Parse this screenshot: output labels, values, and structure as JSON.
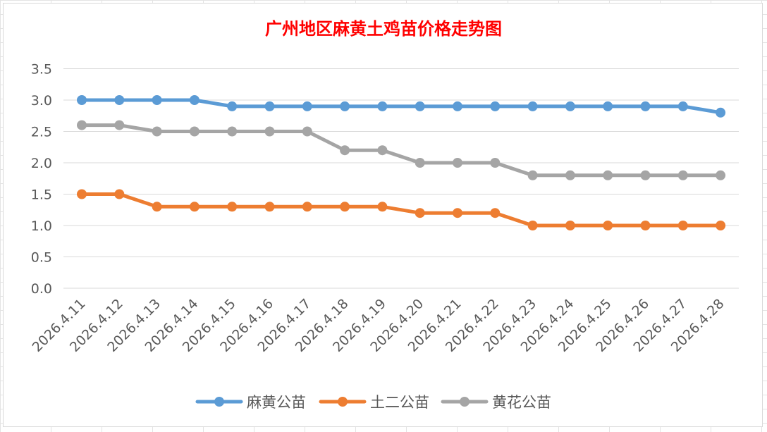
{
  "chart_data": {
    "type": "line",
    "title": "广州地区麻黄土鸡苗价格走势图",
    "xlabel": "",
    "ylabel": "",
    "ylim": [
      0,
      3.5
    ],
    "y_ticks": [
      "0.0",
      "0.5",
      "1.0",
      "1.5",
      "2.0",
      "2.5",
      "3.0",
      "3.5"
    ],
    "grid": true,
    "legend_position": "bottom",
    "categories": [
      "2026.4.11",
      "2026.4.12",
      "2026.4.13",
      "2026.4.14",
      "2026.4.15",
      "2026.4.16",
      "2026.4.17",
      "2026.4.18",
      "2026.4.19",
      "2026.4.20",
      "2026.4.21",
      "2026.4.22",
      "2026.4.23",
      "2026.4.24",
      "2026.4.25",
      "2026.4.26",
      "2026.4.27",
      "2026.4.28"
    ],
    "series": [
      {
        "name": "麻黄公苗",
        "color": "#5b9bd5",
        "values": [
          3.0,
          3.0,
          3.0,
          3.0,
          2.9,
          2.9,
          2.9,
          2.9,
          2.9,
          2.9,
          2.9,
          2.9,
          2.9,
          2.9,
          2.9,
          2.9,
          2.9,
          2.8
        ]
      },
      {
        "name": "土二公苗",
        "color": "#ed7d31",
        "values": [
          1.5,
          1.5,
          1.3,
          1.3,
          1.3,
          1.3,
          1.3,
          1.3,
          1.3,
          1.2,
          1.2,
          1.2,
          1.0,
          1.0,
          1.0,
          1.0,
          1.0,
          1.0
        ]
      },
      {
        "name": "黄花公苗",
        "color": "#a5a5a5",
        "values": [
          2.6,
          2.6,
          2.5,
          2.5,
          2.5,
          2.5,
          2.5,
          2.2,
          2.2,
          2.0,
          2.0,
          2.0,
          1.8,
          1.8,
          1.8,
          1.8,
          1.8,
          1.8
        ]
      }
    ]
  }
}
